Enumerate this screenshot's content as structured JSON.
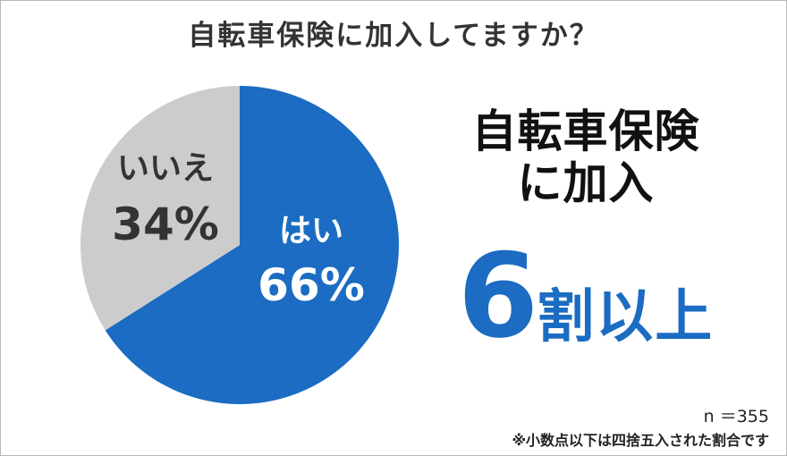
{
  "title": "自転車保険に加入してますか？",
  "chart_data": {
    "type": "pie",
    "slices": [
      {
        "label": "はい",
        "value": 66,
        "display": "66%",
        "color": "#1b6cc2",
        "text_color": "#ffffff"
      },
      {
        "label": "いいえ",
        "value": 34,
        "display": "34%",
        "color": "#cccccc",
        "text_color": "#333333"
      }
    ],
    "start": "12 o'clock",
    "direction": "clockwise"
  },
  "headline": {
    "line1": "自転車保険",
    "line2": "に加入"
  },
  "big_stat": {
    "number": "6",
    "unit": "割以上"
  },
  "sample_size": "n ＝355",
  "footnote": "※小数点以下は四捨五入された割合です"
}
